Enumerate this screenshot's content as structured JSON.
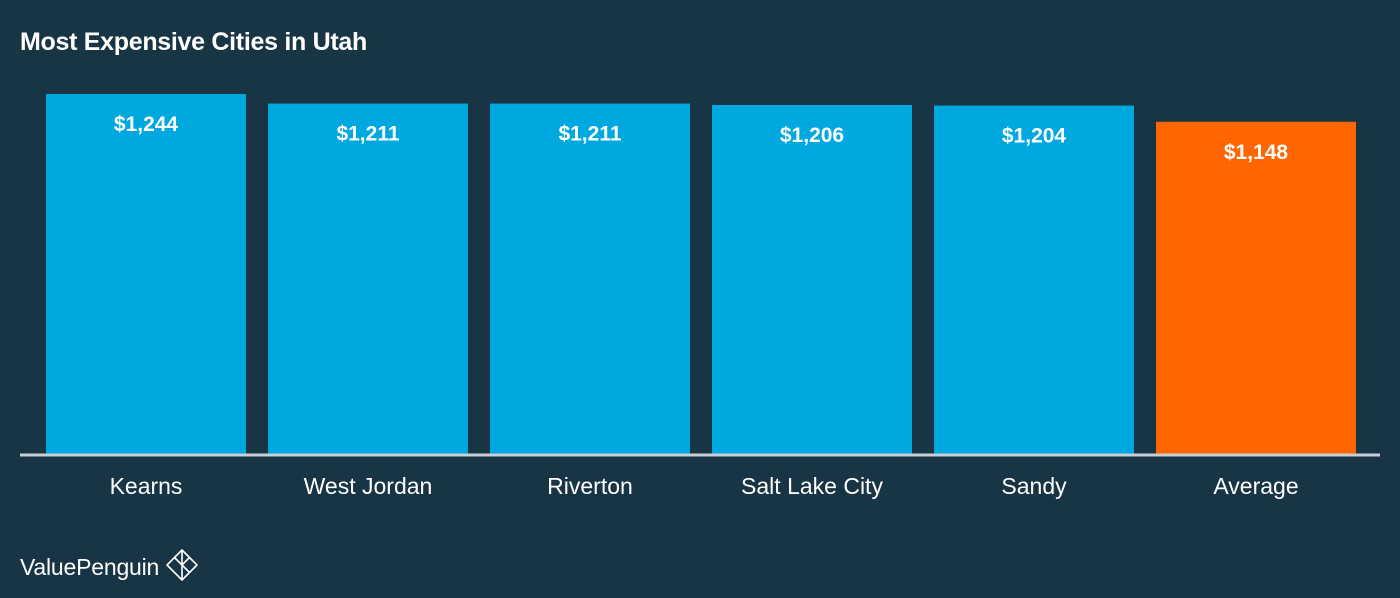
{
  "chart_data": {
    "type": "bar",
    "title": "Most Expensive Cities in Utah",
    "xlabel": "",
    "ylabel": "",
    "ylim": [
      0,
      1300
    ],
    "grid": false,
    "categories": [
      "Kearns",
      "West Jordan",
      "Riverton",
      "Salt Lake City",
      "Sandy",
      "Average"
    ],
    "values": [
      1244,
      1211,
      1211,
      1206,
      1204,
      1148
    ],
    "value_labels": [
      "$1,244",
      "$1,211",
      "$1,211",
      "$1,206",
      "$1,204",
      "$1,148"
    ],
    "colors": [
      "#00a8e0",
      "#00a8e0",
      "#00a8e0",
      "#00a8e0",
      "#00a8e0",
      "#ff6600"
    ]
  },
  "brand": {
    "name": "ValuePenguin",
    "icon": "penguin-diamond-icon"
  },
  "colors": {
    "background": "#183545",
    "bar_primary": "#00a8e0",
    "bar_highlight": "#ff6600",
    "baseline": "#c9ced2"
  }
}
